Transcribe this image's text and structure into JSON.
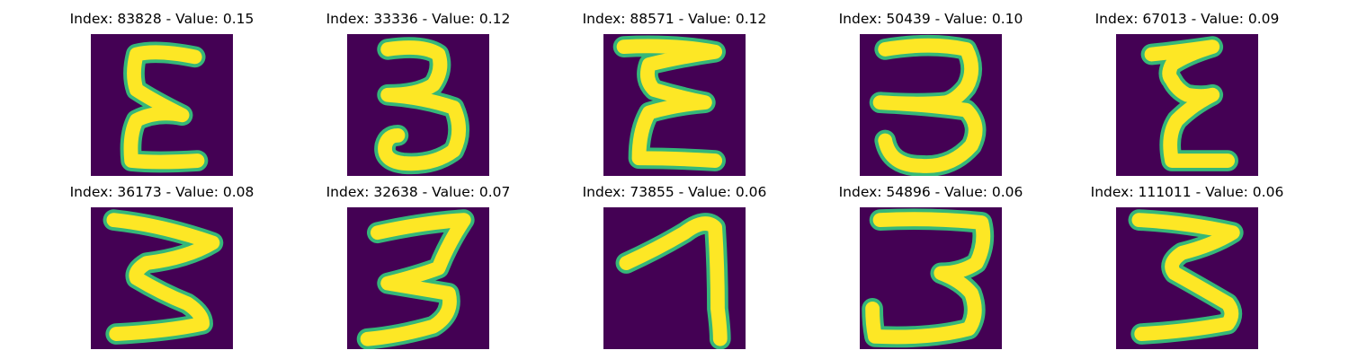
{
  "colors": {
    "background": "#440154",
    "stroke": "#FDE725",
    "stroke_edge": "#35B779"
  },
  "panels": [
    {
      "title": "Index: 83828 - Value: 0.15",
      "glyph": "epsilon-shaped handwritten digit"
    },
    {
      "title": "Index: 33336 - Value: 0.12",
      "glyph": "handwritten digit 3"
    },
    {
      "title": "Index: 88571 - Value: 0.12",
      "glyph": "epsilon-shaped handwritten digit"
    },
    {
      "title": "Index: 50439 - Value: 0.10",
      "glyph": "handwritten digit 3"
    },
    {
      "title": "Index: 67013 - Value: 0.09",
      "glyph": "epsilon-shaped handwritten digit"
    },
    {
      "title": "Index: 36173 - Value: 0.08",
      "glyph": "handwritten digit 3"
    },
    {
      "title": "Index: 32638 - Value: 0.07",
      "glyph": "handwritten digit 3"
    },
    {
      "title": "Index: 73855 - Value: 0.06",
      "glyph": "handwritten digit 7"
    },
    {
      "title": "Index: 54896 - Value: 0.06",
      "glyph": "handwritten digit 3"
    },
    {
      "title": "Index: 111011 - Value: 0.06",
      "glyph": "handwritten digit 3"
    }
  ]
}
